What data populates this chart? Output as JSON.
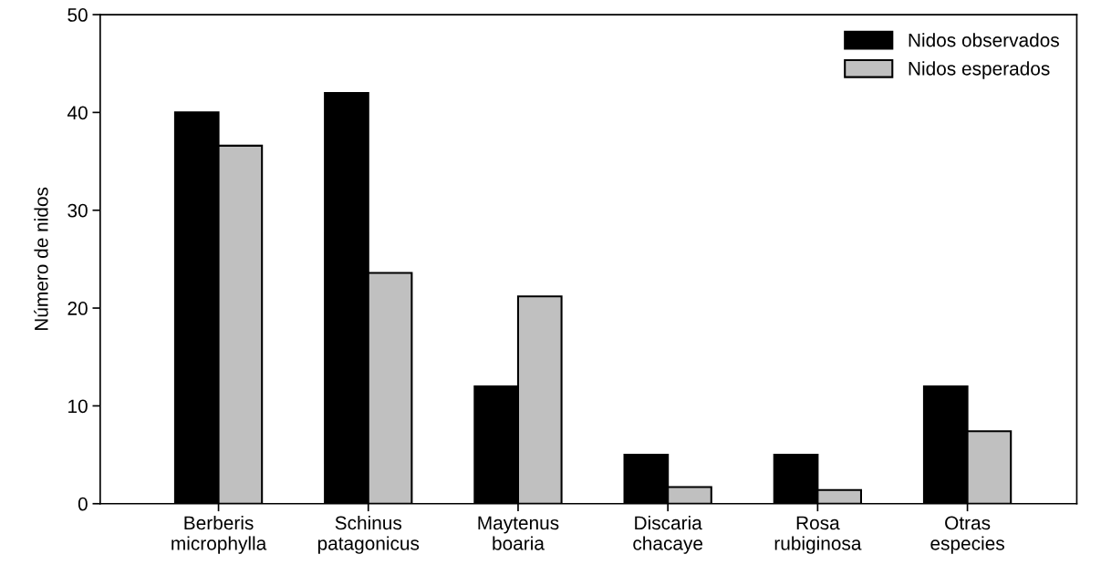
{
  "chart_data": {
    "type": "bar",
    "ylabel": "Número de nidos",
    "categories": [
      "Berberis\nmicrophylla",
      "Schinus\npatagonicus",
      "Maytenus\nboaria",
      "Discaria\nchacaye",
      "Rosa\nrubiginosa",
      "Otras\nespecies"
    ],
    "series": [
      {
        "name": "Nidos observados",
        "color": "#000000",
        "values": [
          40,
          42,
          12,
          5,
          5,
          12
        ]
      },
      {
        "name": "Nidos esperados",
        "color": "#c0c0c0",
        "values": [
          36.6,
          23.6,
          21.2,
          1.7,
          1.4,
          7.4
        ]
      }
    ],
    "ylim": [
      0,
      50
    ],
    "yticks": [
      0,
      10,
      20,
      30,
      40,
      50
    ],
    "grid": false,
    "legend": "top right"
  }
}
